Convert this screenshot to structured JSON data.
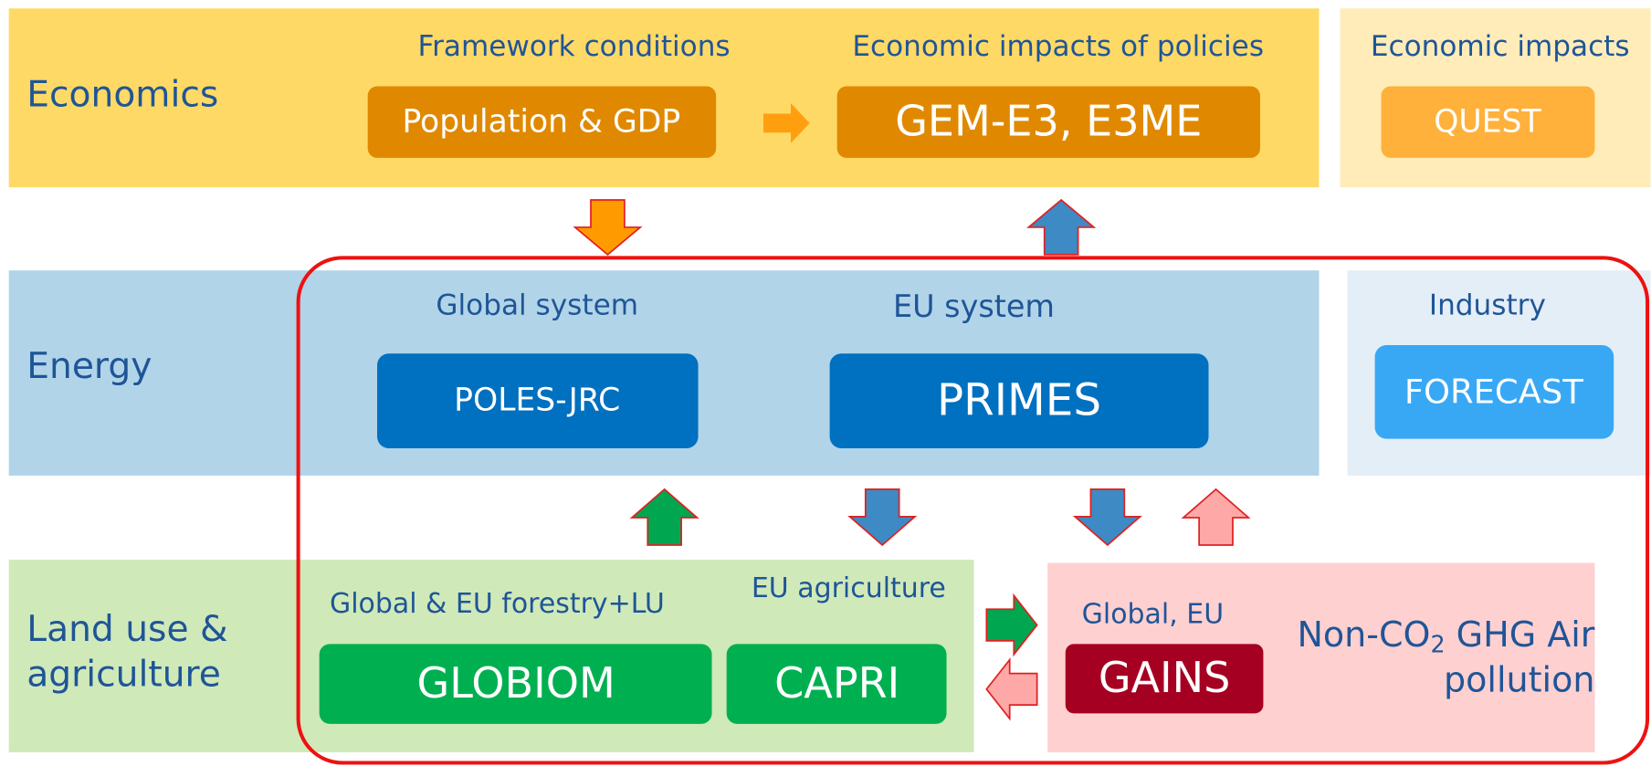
{
  "rows": {
    "economics": {
      "label": "Economics",
      "framework": {
        "title": "Framework conditions",
        "box": "Population & GDP"
      },
      "policies": {
        "title": "Economic impacts of policies",
        "box": "GEM-E3, E3ME"
      },
      "impacts": {
        "title": "Economic impacts",
        "box": "QUEST"
      }
    },
    "energy": {
      "label": "Energy",
      "global": {
        "title": "Global system",
        "box": "POLES-JRC"
      },
      "eu": {
        "title": "EU system",
        "box": "PRIMES"
      },
      "industry": {
        "title": "Industry",
        "box": "FORECAST"
      }
    },
    "land": {
      "label_line1": "Land use &",
      "label_line2": "agriculture",
      "forestry": {
        "title": "Global & EU forestry+LU",
        "box": "GLOBIOM"
      },
      "agriculture": {
        "title": "EU agriculture",
        "box": "CAPRI"
      },
      "gains": {
        "title": "Global, EU",
        "box": "GAINS",
        "note_prefix": "Non-CO",
        "note_sub": "2",
        "note_rest": " GHG Air",
        "note_line2": "pollution"
      }
    }
  }
}
